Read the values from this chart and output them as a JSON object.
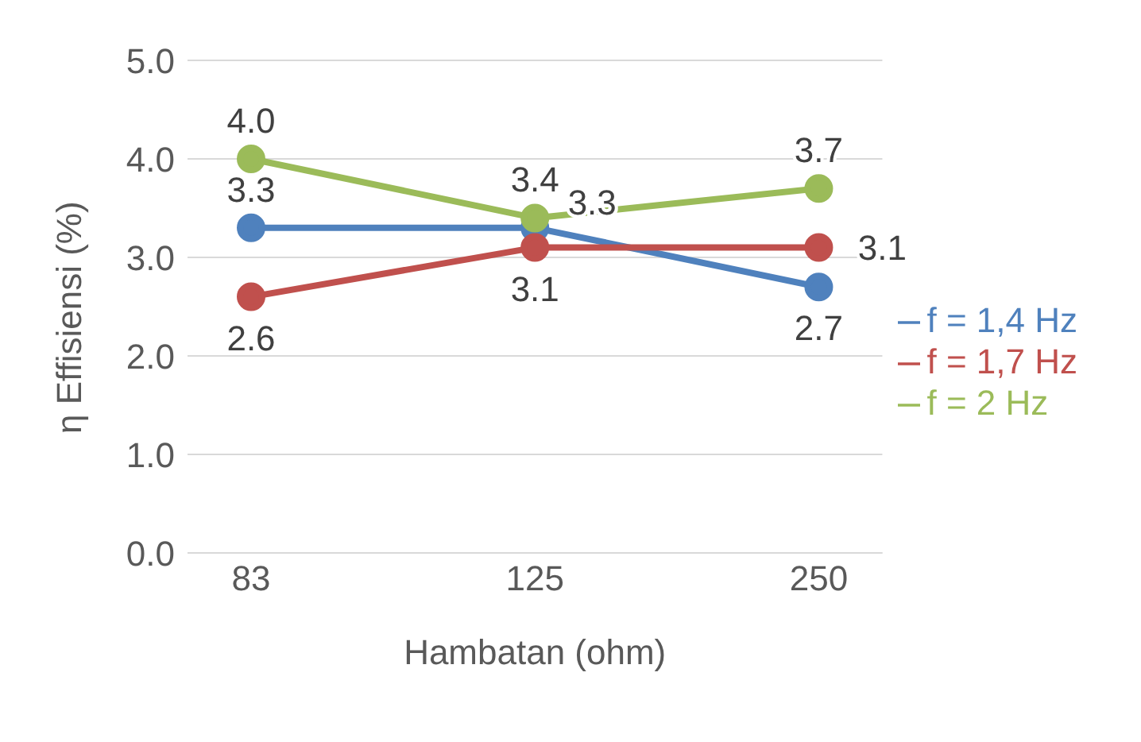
{
  "chart_data": {
    "type": "line",
    "xlabel": "Hambatan (ohm)",
    "ylabel": "η Effisiensi (%)",
    "categories": [
      "83",
      "125",
      "250"
    ],
    "series": [
      {
        "name": "f = 1,4 Hz",
        "color": "#4f81bd",
        "values": [
          3.3,
          3.3,
          2.7
        ],
        "value_labels": [
          "3.3",
          "3.3",
          "2.7"
        ]
      },
      {
        "name": "f = 1,7 Hz",
        "color": "#c0504d",
        "values": [
          2.6,
          3.1,
          3.1
        ],
        "value_labels": [
          "2.6",
          "3.1",
          "3.1"
        ]
      },
      {
        "name": "f = 2 Hz",
        "color": "#9bbb59",
        "values": [
          4.0,
          3.4,
          3.7
        ],
        "value_labels": [
          "4.0",
          "3.4",
          "3.7"
        ]
      }
    ],
    "ylim": [
      0,
      5
    ],
    "yticks": [
      {
        "value": 0,
        "label": "0.0"
      },
      {
        "value": 1,
        "label": "1.0"
      },
      {
        "value": 2,
        "label": "2.0"
      },
      {
        "value": 3,
        "label": "3.0"
      },
      {
        "value": 4,
        "label": "4.0"
      },
      {
        "value": 5,
        "label": "5.0"
      }
    ],
    "grid": "y",
    "legend": "right",
    "marker": "circle",
    "line_style": "solid"
  }
}
